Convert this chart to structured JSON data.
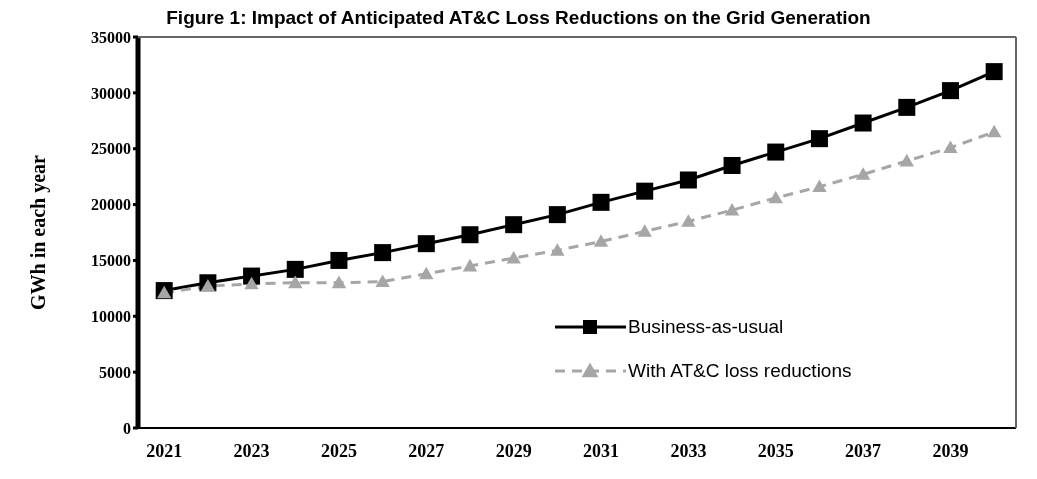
{
  "chart_data": {
    "type": "line",
    "title": "Figure 1: Impact of Anticipated AT&C Loss Reductions on the Grid Generation",
    "ylabel": "GWh in each year",
    "x": [
      2021,
      2022,
      2023,
      2024,
      2025,
      2026,
      2027,
      2028,
      2029,
      2030,
      2031,
      2032,
      2033,
      2034,
      2035,
      2036,
      2037,
      2038,
      2039,
      2040
    ],
    "series": [
      {
        "name": "Business-as-usual",
        "color": "#000000",
        "marker": "square",
        "line_style": "solid",
        "values": [
          12300,
          13000,
          13600,
          14200,
          15000,
          15700,
          16500,
          17300,
          18200,
          19100,
          20200,
          21200,
          22200,
          23500,
          24700,
          25900,
          27300,
          28700,
          30200,
          31900
        ]
      },
      {
        "name": "With AT&C loss reductions",
        "color": "#a6a6a6",
        "marker": "triangle",
        "line_style": "dashed",
        "values": [
          12100,
          12700,
          12900,
          13000,
          13000,
          13100,
          13800,
          14500,
          15200,
          15900,
          16700,
          17600,
          18500,
          19500,
          20600,
          21600,
          22700,
          23900,
          25100,
          26500
        ]
      }
    ],
    "xlim": [
      2020.4,
      2040.5
    ],
    "xticks": [
      2021,
      2023,
      2025,
      2027,
      2029,
      2031,
      2033,
      2035,
      2037,
      2039
    ],
    "ylim": [
      0,
      35000
    ],
    "yticks": [
      0,
      5000,
      10000,
      15000,
      20000,
      25000,
      30000,
      35000
    ],
    "grid": false,
    "legend": "bottom right"
  }
}
